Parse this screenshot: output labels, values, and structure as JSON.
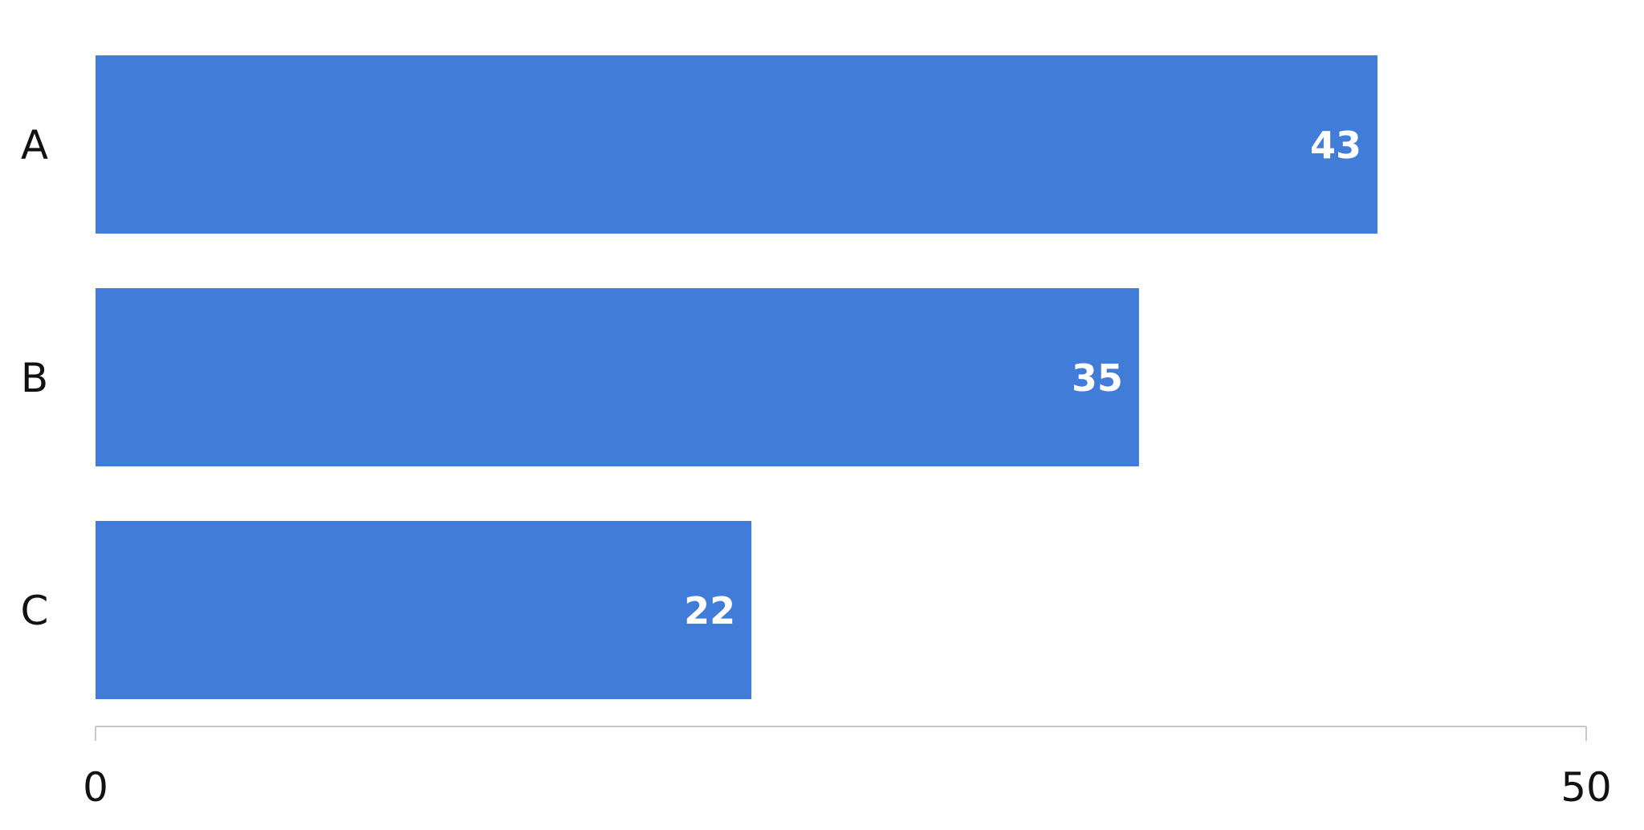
{
  "chart_data": {
    "type": "bar",
    "orientation": "horizontal",
    "categories": [
      "A",
      "B",
      "C"
    ],
    "values": [
      43,
      35,
      22
    ],
    "title": "",
    "xlabel": "",
    "ylabel": "",
    "xlim": [
      0,
      50
    ],
    "x_ticks": [
      "0",
      "50"
    ],
    "data_labels": [
      "43",
      "35",
      "22"
    ],
    "grid": false,
    "legend": "none",
    "bar_color": "#407cd8"
  }
}
